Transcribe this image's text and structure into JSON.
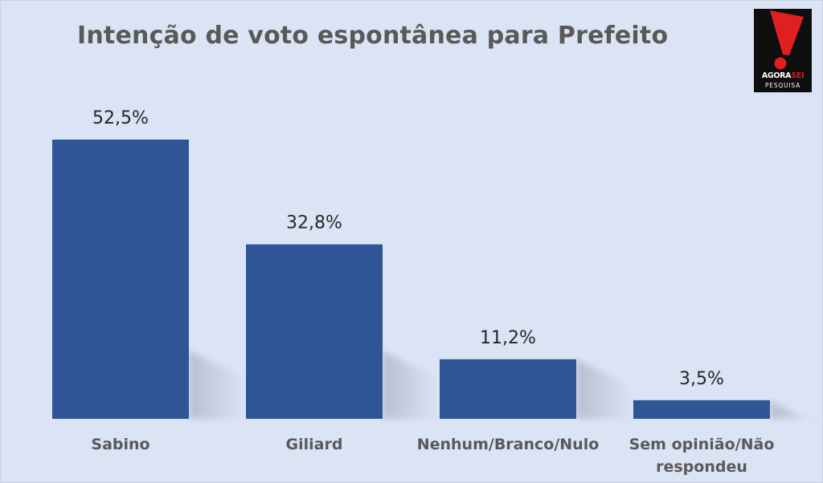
{
  "chart_data": {
    "type": "bar",
    "title": "Intenção de voto espontânea para Prefeito",
    "categories": [
      "Sabino",
      "Giliard",
      "Nenhum/Branco/Nulo",
      "Sem opinião/Não respondeu"
    ],
    "category_lines": [
      [
        "Sabino"
      ],
      [
        "Giliard"
      ],
      [
        "Nenhum/Branco/Nulo"
      ],
      [
        "Sem opinião/Não",
        "respondeu"
      ]
    ],
    "values": [
      52.5,
      32.8,
      11.2,
      3.5
    ],
    "data_labels": [
      "52,5%",
      "32,8%",
      "11,2%",
      "3,5%"
    ],
    "xlabel": "",
    "ylabel": "",
    "ylim": [
      0,
      55
    ],
    "grid": false,
    "legend": "none",
    "bar_color": "#2f5597",
    "background_color": "#dbe4f4"
  },
  "logo": {
    "text_part1": "AGORA",
    "text_part2": "SEI",
    "subtext": "PESQUISA",
    "mark_color": "#e02020"
  }
}
